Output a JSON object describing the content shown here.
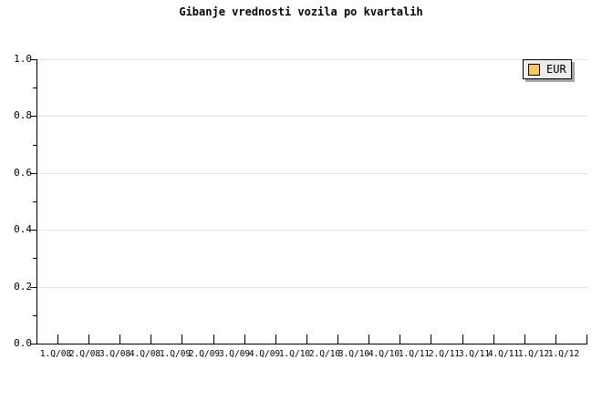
{
  "title": "Gibanje vrednosti vozila po kvartalih",
  "legend": {
    "label": "EUR",
    "swatch_color": "#fac76d",
    "background": "#ededed",
    "border_color": "#000000",
    "shadow_color": "#a5a5a5",
    "position": "top-right"
  },
  "colors": {
    "background": "#ffffff",
    "axis": "#000000",
    "grid": "#e4e4e4",
    "text": "#000000"
  },
  "chart_data": {
    "type": "line",
    "title": "Gibanje vrednosti vozila po kvartalih",
    "categories": [
      "1.Q/08",
      "2.Q/08",
      "3.Q/08",
      "4.Q/08",
      "1.Q/09",
      "2.Q/09",
      "3.Q/09",
      "4.Q/09",
      "1.Q/10",
      "2.Q/10",
      "3.Q/10",
      "4.Q/10",
      "1.Q/11",
      "2.Q/11",
      "3.Q/11",
      "4.Q/11",
      "1.Q/12",
      "1.Q/12"
    ],
    "series": [
      {
        "name": "EUR",
        "values": []
      }
    ],
    "note": "Plot area is empty - no data points are drawn",
    "xlabel": "",
    "ylabel": "",
    "ylim": [
      0.0,
      1.0
    ],
    "y_ticks": [
      0.0,
      0.2,
      0.4,
      0.6,
      0.8,
      1.0
    ],
    "y_tick_labels": [
      "0.0",
      "0.2",
      "0.4",
      "0.6",
      "0.8",
      "1.0"
    ],
    "y_minor_ticks": [
      0.1,
      0.3,
      0.5,
      0.7,
      0.9
    ],
    "grid": "horizontal-major-only",
    "legend_position": "top-right",
    "legend_entries": [
      "EUR"
    ]
  }
}
